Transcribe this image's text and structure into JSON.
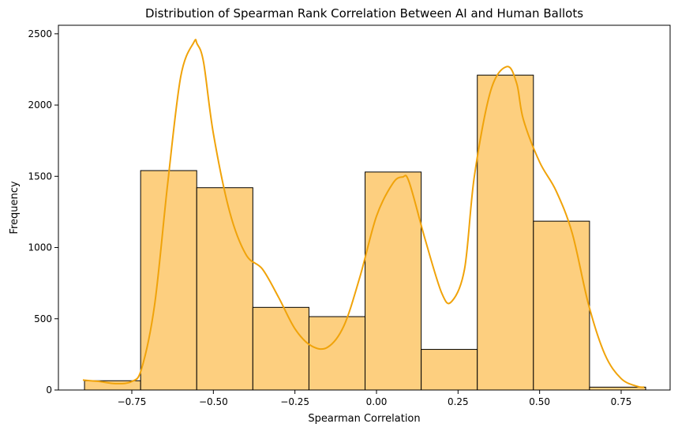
{
  "chart_data": {
    "type": "bar",
    "title": "Distribution of Spearman Rank Correlation Between AI and Human Ballots",
    "xlabel": "Spearman Correlation",
    "ylabel": "Frequency",
    "xlim": [
      -0.975,
      0.9
    ],
    "ylim": [
      0,
      2560
    ],
    "x_ticks": [
      -0.75,
      -0.5,
      -0.25,
      0.0,
      0.25,
      0.5,
      0.75
    ],
    "x_tick_labels": [
      "−0.75",
      "−0.50",
      "−0.25",
      "0.00",
      "0.25",
      "0.50",
      "0.75"
    ],
    "y_ticks": [
      0,
      500,
      1000,
      1500,
      2000,
      2500
    ],
    "y_tick_labels": [
      "0",
      "500",
      "1000",
      "1500",
      "2000",
      "2500"
    ],
    "grid": false,
    "bins": [
      {
        "start": -0.895,
        "end": -0.723,
        "count": 65
      },
      {
        "start": -0.723,
        "end": -0.551,
        "count": 1540
      },
      {
        "start": -0.551,
        "end": -0.379,
        "count": 1420
      },
      {
        "start": -0.379,
        "end": -0.207,
        "count": 580
      },
      {
        "start": -0.207,
        "end": -0.035,
        "count": 515
      },
      {
        "start": -0.035,
        "end": 0.137,
        "count": 1530
      },
      {
        "start": 0.137,
        "end": 0.309,
        "count": 285
      },
      {
        "start": 0.309,
        "end": 0.481,
        "count": 2210
      },
      {
        "start": 0.481,
        "end": 0.653,
        "count": 1185
      },
      {
        "start": 0.653,
        "end": 0.825,
        "count": 20
      }
    ],
    "kde": {
      "x": [
        -0.9,
        -0.85,
        -0.8,
        -0.75,
        -0.72,
        -0.68,
        -0.64,
        -0.6,
        -0.56,
        -0.55,
        -0.53,
        -0.5,
        -0.45,
        -0.4,
        -0.35,
        -0.3,
        -0.25,
        -0.2,
        -0.15,
        -0.1,
        -0.05,
        0.0,
        0.05,
        0.08,
        0.1,
        0.15,
        0.2,
        0.23,
        0.27,
        0.3,
        0.35,
        0.4,
        0.43,
        0.45,
        0.5,
        0.55,
        0.6,
        0.65,
        0.7,
        0.75,
        0.8,
        0.82
      ],
      "y": [
        70,
        60,
        45,
        60,
        150,
        600,
        1450,
        2200,
        2440,
        2430,
        2300,
        1800,
        1250,
        950,
        850,
        650,
        430,
        310,
        300,
        450,
        800,
        1220,
        1450,
        1495,
        1460,
        1050,
        680,
        620,
        850,
        1500,
        2100,
        2270,
        2150,
        1900,
        1600,
        1400,
        1100,
        600,
        250,
        80,
        25,
        20
      ]
    },
    "colors": {
      "bar_fill": "#fdcf7f",
      "bar_edge": "#000000",
      "kde_line": "#f0a30a"
    }
  }
}
